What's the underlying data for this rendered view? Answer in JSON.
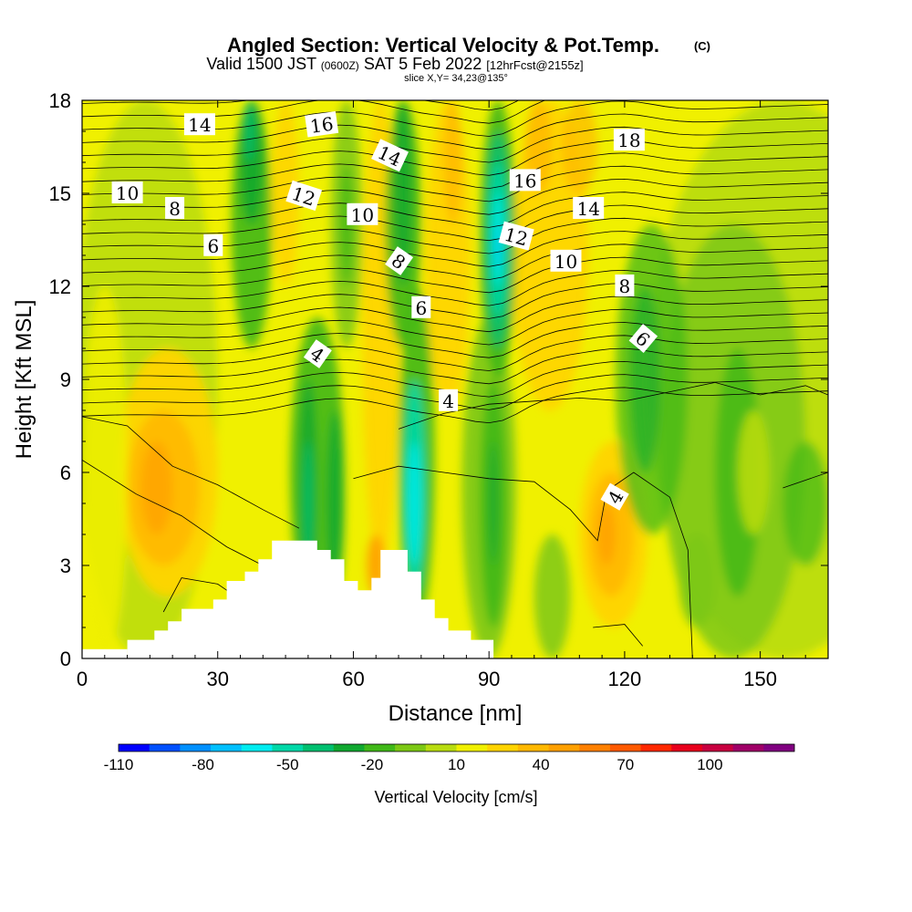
{
  "header": {
    "title": "Angled Section: Vertical Velocity & Pot.Temp.",
    "title_mark": "(C)",
    "valid_prefix": "Valid 1500 JST",
    "valid_utc": "(0600Z)",
    "valid_date": "SAT 5 Feb 2022",
    "forecast": "[12hrFcst@2155z]",
    "slice": "slice X,Y= 34,23@135°"
  },
  "chart_data": {
    "type": "heatmap",
    "xlabel": "Distance [nm]",
    "ylabel": "Height [Kft MSL]",
    "xlim": [
      0,
      165
    ],
    "ylim": [
      0,
      18
    ],
    "x_ticks": [
      "0",
      "30",
      "60",
      "90",
      "120",
      "150"
    ],
    "y_ticks": [
      "0",
      "3",
      "6",
      "9",
      "12",
      "15",
      "18"
    ],
    "colorbar": {
      "label": "Vertical Velocity [cm/s]",
      "tick_labels": [
        "-110",
        "-80",
        "-50",
        "-20",
        "10",
        "40",
        "70",
        "100"
      ],
      "colors": [
        "#0000ff",
        "#0050ff",
        "#0090ff",
        "#00c0ff",
        "#00ecf0",
        "#00d8a8",
        "#00c070",
        "#10a830",
        "#40b818",
        "#7cc814",
        "#b8dc10",
        "#f0f000",
        "#ffd400",
        "#ffb800",
        "#ffa000",
        "#ff8000",
        "#ff5a00",
        "#ff2800",
        "#e8001c",
        "#c80040",
        "#a00068",
        "#800080"
      ]
    },
    "contours": {
      "variable": "Potential temperature (°C)",
      "labels": [
        {
          "text": "14",
          "x": 26,
          "y": 17.2,
          "r": 0
        },
        {
          "text": "16",
          "x": 53,
          "y": 17.2,
          "r": -8
        },
        {
          "text": "18",
          "x": 121,
          "y": 16.7,
          "r": 0
        },
        {
          "text": "14",
          "x": 68,
          "y": 16.2,
          "r": 25
        },
        {
          "text": "16",
          "x": 98,
          "y": 15.4,
          "r": 0
        },
        {
          "text": "10",
          "x": 10,
          "y": 15.0,
          "r": 0
        },
        {
          "text": "12",
          "x": 49,
          "y": 14.9,
          "r": 18
        },
        {
          "text": "14",
          "x": 112,
          "y": 14.5,
          "r": 0
        },
        {
          "text": "8",
          "x": 20.5,
          "y": 14.5,
          "r": 0
        },
        {
          "text": "10",
          "x": 62,
          "y": 14.3,
          "r": 0
        },
        {
          "text": "12",
          "x": 96,
          "y": 13.6,
          "r": 15
        },
        {
          "text": "6",
          "x": 29,
          "y": 13.3,
          "r": 0
        },
        {
          "text": "10",
          "x": 107,
          "y": 12.8,
          "r": 0
        },
        {
          "text": "8",
          "x": 70,
          "y": 12.8,
          "r": 35
        },
        {
          "text": "8",
          "x": 120,
          "y": 12.0,
          "r": 0
        },
        {
          "text": "6",
          "x": 75,
          "y": 11.3,
          "r": 0
        },
        {
          "text": "6",
          "x": 124,
          "y": 10.3,
          "r": 40
        },
        {
          "text": "4",
          "x": 52,
          "y": 9.8,
          "r": 35
        },
        {
          "text": "4",
          "x": 81,
          "y": 8.3,
          "r": 0
        },
        {
          "text": "4",
          "x": 118,
          "y": 5.2,
          "r": -60
        }
      ]
    },
    "terrain": [
      [
        10,
        0.3
      ],
      [
        10,
        0.6
      ],
      [
        16,
        0.6
      ],
      [
        16,
        0.9
      ],
      [
        19,
        0.9
      ],
      [
        19,
        1.2
      ],
      [
        22,
        1.2
      ],
      [
        22,
        1.6
      ],
      [
        29,
        1.6
      ],
      [
        29,
        1.9
      ],
      [
        32,
        1.9
      ],
      [
        32,
        2.5
      ],
      [
        36,
        2.5
      ],
      [
        36,
        2.8
      ],
      [
        39,
        2.8
      ],
      [
        39,
        3.2
      ],
      [
        42,
        3.2
      ],
      [
        42,
        3.8
      ],
      [
        52,
        3.8
      ],
      [
        52,
        3.5
      ],
      [
        55,
        3.5
      ],
      [
        55,
        3.2
      ],
      [
        58,
        3.2
      ],
      [
        58,
        2.5
      ],
      [
        61,
        2.5
      ],
      [
        61,
        2.2
      ],
      [
        64,
        2.2
      ],
      [
        64,
        2.6
      ],
      [
        66,
        2.6
      ],
      [
        66,
        3.5
      ],
      [
        72,
        3.5
      ],
      [
        72,
        2.8
      ],
      [
        75,
        2.8
      ],
      [
        75,
        1.9
      ],
      [
        78,
        1.9
      ],
      [
        78,
        1.3
      ],
      [
        81,
        1.3
      ],
      [
        81,
        0.9
      ],
      [
        86,
        0.9
      ],
      [
        86,
        0.6
      ],
      [
        91,
        0.6
      ],
      [
        91,
        0.3
      ]
    ]
  }
}
